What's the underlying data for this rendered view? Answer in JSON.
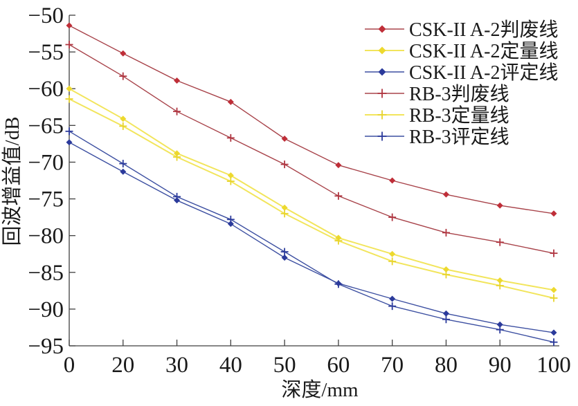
{
  "figure": {
    "background": "#ffffff",
    "axis_color": "#3f3f3f",
    "text_color": "#1a1a1a"
  },
  "chart_data": {
    "type": "line",
    "title": "",
    "xlabel": "深度/mm",
    "ylabel": "回波增益值/dB",
    "grid": false,
    "legend_position": "top-right",
    "categories": [
      0,
      20,
      30,
      40,
      50,
      60,
      70,
      80,
      90,
      100
    ],
    "x_tick_labels": [
      "0",
      "20",
      "30",
      "40",
      "50",
      "60",
      "70",
      "80",
      "90",
      "100"
    ],
    "ylim": [
      -95,
      -50
    ],
    "y_ticks": [
      -50,
      -55,
      -60,
      -65,
      -70,
      -75,
      -80,
      -85,
      -90,
      -95
    ],
    "y_tick_labels": [
      "−50",
      "−55",
      "−60",
      "−65",
      "−70",
      "−75",
      "−80",
      "−85",
      "−90",
      "−95"
    ],
    "series": [
      {
        "name": "CSK-II A-2判废线",
        "marker": "diamond",
        "line_color": "#a8434a",
        "marker_color": "#bf2e38",
        "line_width": 1.4,
        "values": [
          -51.4,
          -55.2,
          -58.9,
          -61.8,
          -66.8,
          -70.4,
          -72.5,
          -74.4,
          -75.9,
          -77.0
        ]
      },
      {
        "name": "CSK-II A-2定量线",
        "marker": "diamond",
        "line_color": "#f2e55c",
        "marker_color": "#edd92e",
        "line_width": 2.0,
        "values": [
          -60.0,
          -64.1,
          -68.8,
          -71.8,
          -76.2,
          -80.3,
          -82.5,
          -84.6,
          -86.1,
          -87.4
        ]
      },
      {
        "name": "CSK-II A-2评定线",
        "marker": "diamond",
        "line_color": "#3c4fa1",
        "marker_color": "#2b3a9b",
        "line_width": 1.4,
        "values": [
          -67.3,
          -71.3,
          -75.2,
          -78.4,
          -83.0,
          -86.5,
          -88.6,
          -90.6,
          -92.1,
          -93.2
        ]
      },
      {
        "name": "RB-3判废线",
        "marker": "plus",
        "line_color": "#a8434a",
        "marker_color": "#b03540",
        "line_width": 1.4,
        "values": [
          -54.0,
          -58.3,
          -63.1,
          -66.7,
          -70.3,
          -74.6,
          -77.5,
          -79.6,
          -80.9,
          -82.4
        ]
      },
      {
        "name": "RB-3定量线",
        "marker": "plus",
        "line_color": "#f2e55c",
        "marker_color": "#e8d42c",
        "line_width": 2.0,
        "values": [
          -61.4,
          -65.1,
          -69.3,
          -72.6,
          -77.0,
          -80.7,
          -83.5,
          -85.3,
          -86.8,
          -88.5
        ]
      },
      {
        "name": "RB-3评定线",
        "marker": "plus",
        "line_color": "#3c4fa1",
        "marker_color": "#2b3a9b",
        "line_width": 1.4,
        "values": [
          -65.8,
          -70.2,
          -74.7,
          -77.8,
          -82.2,
          -86.6,
          -89.6,
          -91.4,
          -92.8,
          -94.5
        ]
      }
    ]
  }
}
